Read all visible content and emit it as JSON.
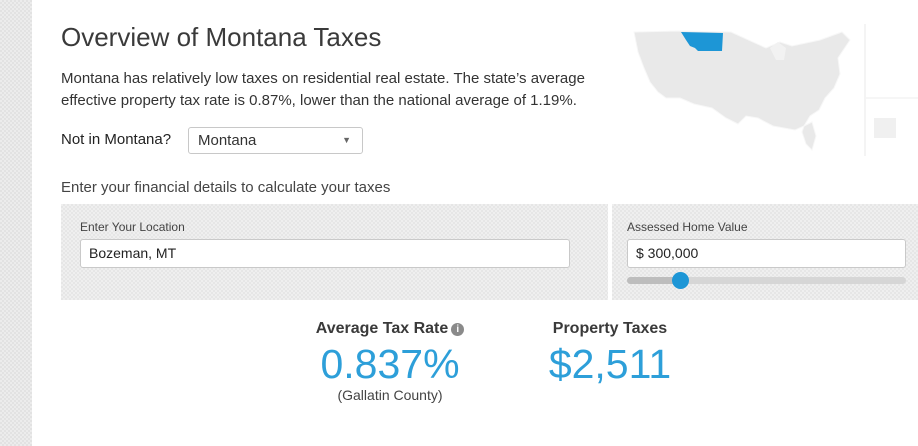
{
  "page": {
    "title": "Overview of Montana Taxes",
    "intro": "Montana has relatively low taxes on residential real estate. The state’s average effective property tax rate is 0.87%, lower than the national average of 1.19%."
  },
  "state_picker": {
    "label": "Not in Montana?",
    "selected": "Montana"
  },
  "calculator": {
    "heading": "Enter your financial details to calculate your taxes",
    "location_label": "Enter Your Location",
    "location_value": "Bozeman, MT",
    "home_value_label": "Assessed Home Value",
    "home_value": "$ 300,000",
    "slider_level": 0.17
  },
  "results": {
    "avg_rate_label": "Average Tax Rate",
    "avg_rate_value": "0.837%",
    "avg_rate_sub": "(Gallatin County)",
    "property_taxes_label": "Property Taxes",
    "property_taxes_value": "$2,511"
  },
  "colors": {
    "accent": "#2d9fd9",
    "highlight_state": "#1d96d6",
    "map_land": "#e8e8e8"
  },
  "icons": {
    "info": "info-icon",
    "dropdown": "chevron-down-icon",
    "map": "us-map-montana-highlighted"
  }
}
